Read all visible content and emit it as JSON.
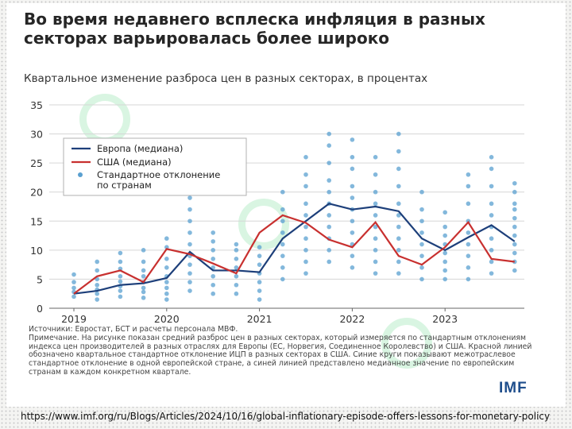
{
  "title": "Во время недавнего всплеска инфляция в разных секторах варьировалась более широко",
  "subtitle": "Квартальное изменение разброса цен в разных секторах, в процентах",
  "source": "Источники: Евростат, БСТ и расчеты персонала МВФ.",
  "note": "Примечание. На рисунке показан средний разброс цен в разных секторах, который измеряется по стандартным отклонениям индекса цен производителей в разных отраслях для Европы (ЕС, Норвегия, Соединенное Королевство) и США. Красной линией обозначено квартальное стандартное отклонение ИЦП в разных секторах в США. Синие круги показывают межотраслевое стандартное отклонение в одной европейской стране, а синей линией представлено медианное значение по европейским странам в каждом конкретном квартале.",
  "logo": "IMF",
  "url": "https://www.imf.org/ru/Blogs/Articles/2024/10/16/global-inflationary-episode-offers-lessons-for-monetary-policy",
  "colors": {
    "europe": "#1d3f7a",
    "usa": "#c8302f",
    "dots": "#5aa0d0"
  },
  "chart_data": {
    "type": "line",
    "ylim": [
      0,
      35
    ],
    "yticks": [
      0,
      5,
      10,
      15,
      20,
      25,
      30,
      35
    ],
    "xticks": [
      "2019",
      "2020",
      "2021",
      "2022",
      "2023"
    ],
    "x": [
      "2019Q1",
      "2019Q2",
      "2019Q3",
      "2019Q4",
      "2020Q1",
      "2020Q2",
      "2020Q3",
      "2020Q4",
      "2021Q1",
      "2021Q2",
      "2021Q3",
      "2021Q4",
      "2022Q1",
      "2022Q2",
      "2022Q3",
      "2022Q4",
      "2023Q1",
      "2023Q2",
      "2023Q3",
      "2023Q4"
    ],
    "legend": {
      "position": "top-left",
      "entries": [
        "Европа (медиана)",
        "США (медиана)",
        "Стандартное отклонение по странам"
      ]
    },
    "series": [
      {
        "name": "Европа (медиана)",
        "values": [
          2.5,
          3.0,
          4.0,
          4.3,
          5.2,
          9.7,
          6.5,
          6.5,
          6.2,
          12.0,
          15.0,
          18.0,
          17.0,
          17.5,
          16.7,
          12.0,
          10.0,
          12.2,
          14.3,
          11.5
        ]
      },
      {
        "name": "США (медиана)",
        "values": [
          2.5,
          5.5,
          6.5,
          4.5,
          10.2,
          9.3,
          7.7,
          6.0,
          13.0,
          16.0,
          14.7,
          11.8,
          10.5,
          14.8,
          9.0,
          7.5,
          10.5,
          14.8,
          8.5,
          8.0
        ]
      },
      {
        "name": "Стандартное отклонение по странам",
        "points": [
          [
            2.0,
            2.8,
            3.5,
            4.5,
            5.8
          ],
          [
            1.5,
            2.5,
            3.2,
            4.0,
            5.0,
            6.5,
            8.0
          ],
          [
            2.0,
            3.0,
            3.8,
            4.6,
            5.5,
            6.8,
            8.0,
            9.5
          ],
          [
            1.8,
            2.8,
            3.5,
            4.5,
            5.5,
            6.5,
            8.0,
            10.0
          ],
          [
            1.5,
            2.5,
            3.5,
            4.5,
            5.5,
            7.0,
            8.5,
            10.5,
            12.0
          ],
          [
            3.0,
            4.5,
            6.0,
            7.5,
            9.0,
            11.0,
            13.0,
            15.0,
            17.0,
            19.0
          ],
          [
            2.5,
            4.0,
            5.5,
            7.0,
            8.5,
            10.0,
            11.5,
            13.0
          ],
          [
            2.5,
            4.0,
            5.5,
            7.0,
            8.5,
            10.0,
            11.0
          ],
          [
            1.5,
            3.0,
            4.5,
            6.0,
            7.5,
            9.0,
            10.5
          ],
          [
            5.0,
            7.0,
            9.0,
            11.0,
            13.0,
            15.0,
            17.0,
            20.0
          ],
          [
            6.0,
            8.0,
            10.0,
            12.0,
            14.0,
            16.0,
            18.0,
            21.0,
            23.0,
            26.0
          ],
          [
            8.0,
            10.0,
            12.0,
            14.0,
            16.0,
            18.0,
            20.0,
            22.0,
            25.0,
            28.0,
            30.0
          ],
          [
            7.0,
            9.0,
            11.0,
            13.0,
            15.0,
            17.0,
            19.0,
            21.0,
            24.0,
            26.0,
            29.0
          ],
          [
            6.0,
            8.0,
            10.0,
            12.0,
            14.0,
            16.0,
            18.0,
            20.0,
            23.0,
            26.0
          ],
          [
            6.0,
            8.0,
            10.0,
            12.0,
            14.0,
            16.0,
            18.0,
            21.0,
            24.0,
            27.0,
            30.0
          ],
          [
            5.0,
            7.0,
            9.0,
            11.0,
            13.0,
            15.0,
            17.0,
            20.0
          ],
          [
            5.0,
            6.5,
            8.0,
            9.5,
            11.0,
            12.5,
            14.0,
            16.5
          ],
          [
            5.0,
            7.0,
            9.0,
            11.0,
            13.0,
            15.0,
            18.0,
            21.0,
            23.0
          ],
          [
            6.0,
            8.0,
            10.0,
            12.0,
            14.0,
            16.0,
            18.0,
            21.0,
            24.0,
            26.0
          ],
          [
            6.5,
            8.0,
            9.5,
            11.0,
            12.5,
            14.0,
            15.5,
            17.0,
            18.0,
            20.0,
            21.5
          ]
        ]
      }
    ]
  }
}
